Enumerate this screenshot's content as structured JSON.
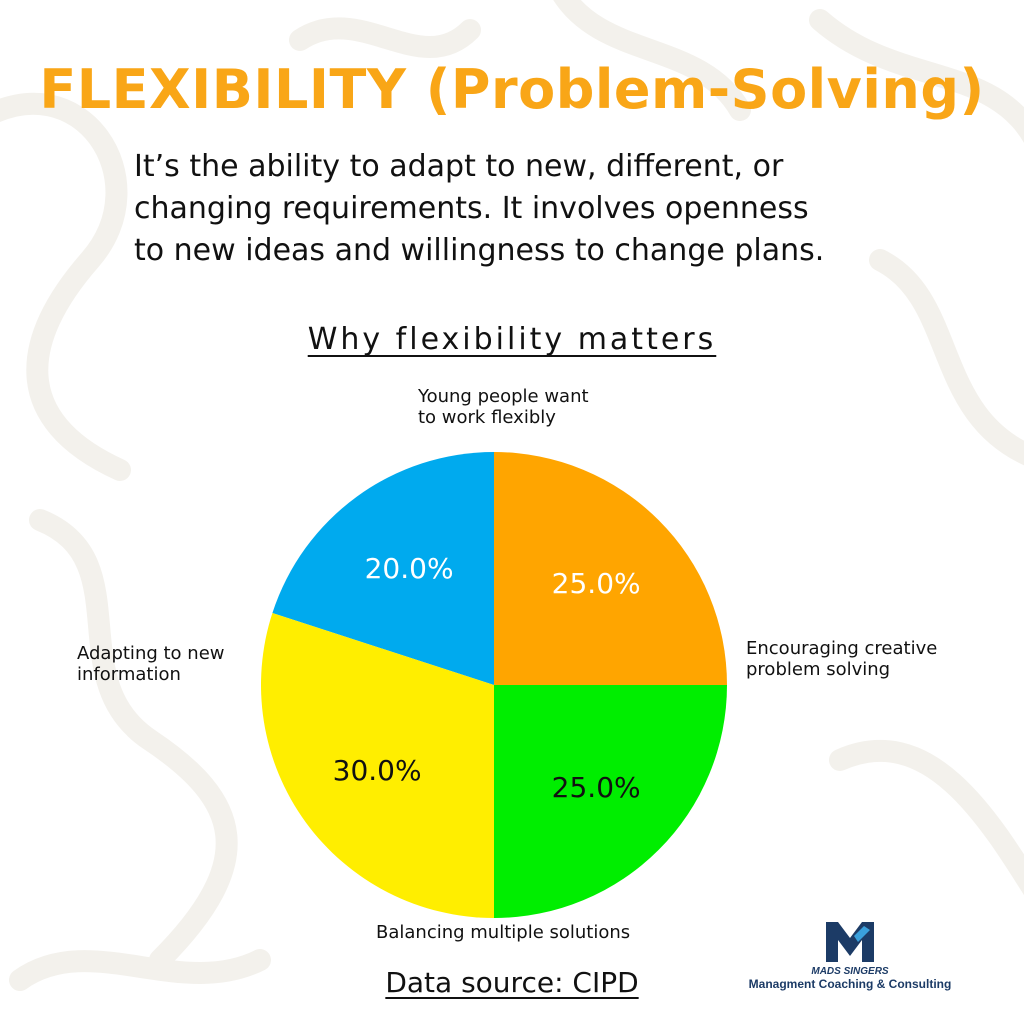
{
  "colors": {
    "accent": "#F9A617",
    "text": "#111111",
    "logo": "#1C3B66"
  },
  "headline": "FLEXIBILITY (Problem-Solving)",
  "description": "It’s the ability to adapt to new, different, or\nchanging requirements. It involves openness\nto new ideas and willingness to change plans.",
  "chart_data": {
    "type": "pie",
    "title": "Why flexibility matters",
    "slices": [
      {
        "label": "Young people want\nto work flexibly",
        "value": 20.0,
        "value_label": "20.0%",
        "color": "#00AAEE",
        "text_color": "#ffffff"
      },
      {
        "label": "Encouraging creative\nproblem solving",
        "value": 25.0,
        "value_label": "25.0%",
        "color": "#FFA500",
        "text_color": "#ffffff"
      },
      {
        "label": "Balancing multiple solutions",
        "value": 25.0,
        "value_label": "25.0%",
        "color": "#00EE00",
        "text_color": "#111111"
      },
      {
        "label": "Adapting to new\ninformation",
        "value": 30.0,
        "value_label": "30.0%",
        "color": "#FFEE00",
        "text_color": "#111111"
      }
    ],
    "start_angle_deg": 144,
    "direction": "clockwise",
    "legend": "none"
  },
  "source": "Data source: CIPD",
  "logo": {
    "name": "MADS SINGERS",
    "tagline": "Managment Coaching & Consulting",
    "icon": "m-logo-icon"
  }
}
